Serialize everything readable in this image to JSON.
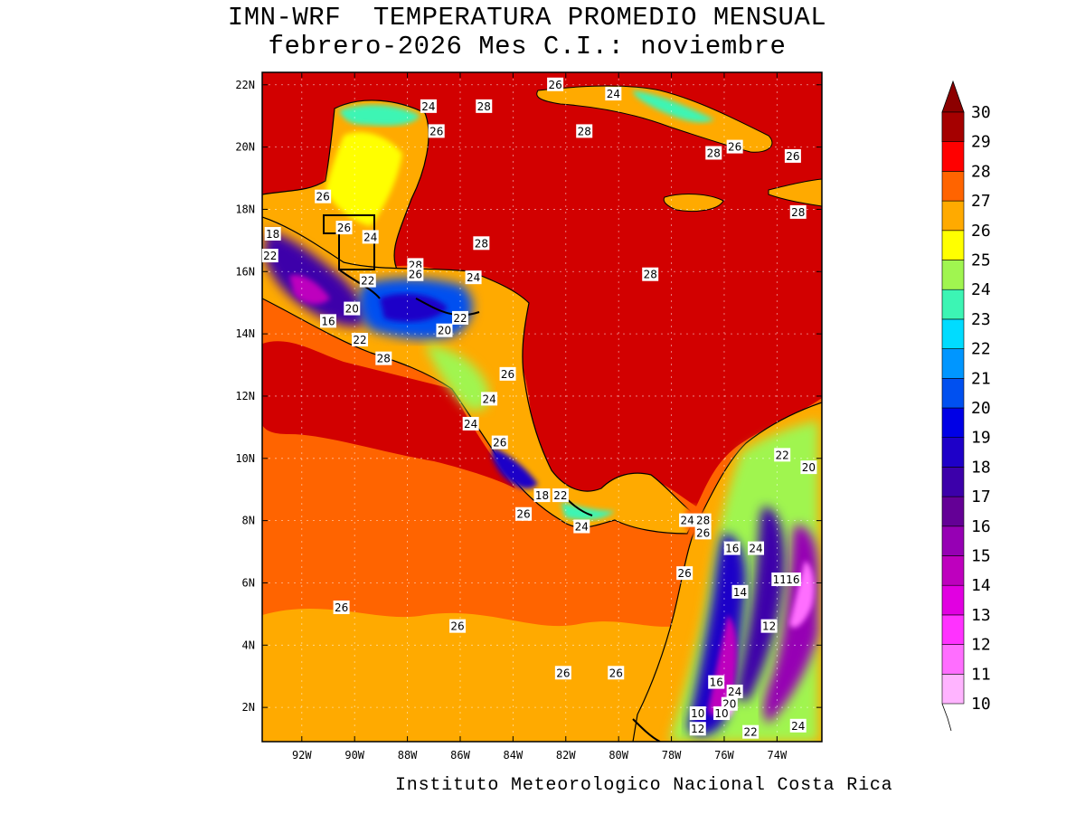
{
  "title": {
    "line1": "IMN-WRF  TEMPERATURA PROMEDIO MENSUAL",
    "line2": "febrero-2026 Mes C.I.: noviembre"
  },
  "credit": "Instituto Meteorologico Nacional Costa Rica",
  "map": {
    "lon_range": [
      -93.5,
      -72.3
    ],
    "lat_range": [
      0.9,
      22.4
    ],
    "x_ticks": [
      {
        "lon": -92,
        "label": "92W"
      },
      {
        "lon": -90,
        "label": "90W"
      },
      {
        "lon": -88,
        "label": "88W"
      },
      {
        "lon": -86,
        "label": "86W"
      },
      {
        "lon": -84,
        "label": "84W"
      },
      {
        "lon": -82,
        "label": "82W"
      },
      {
        "lon": -80,
        "label": "80W"
      },
      {
        "lon": -78,
        "label": "78W"
      },
      {
        "lon": -76,
        "label": "76W"
      },
      {
        "lon": -74,
        "label": "74W"
      }
    ],
    "y_ticks": [
      {
        "lat": 2,
        "label": "2N"
      },
      {
        "lat": 4,
        "label": "4N"
      },
      {
        "lat": 6,
        "label": "6N"
      },
      {
        "lat": 8,
        "label": "8N"
      },
      {
        "lat": 10,
        "label": "10N"
      },
      {
        "lat": 12,
        "label": "12N"
      },
      {
        "lat": 14,
        "label": "14N"
      },
      {
        "lat": 16,
        "label": "16N"
      },
      {
        "lat": 18,
        "label": "18N"
      },
      {
        "lat": 20,
        "label": "20N"
      },
      {
        "lat": 22,
        "label": "22N"
      }
    ],
    "gridlines": true,
    "contour_labels": [
      {
        "lon": -87.2,
        "lat": 21.3,
        "text": "24"
      },
      {
        "lon": -85.1,
        "lat": 21.3,
        "text": "28"
      },
      {
        "lon": -82.4,
        "lat": 22.0,
        "text": "26"
      },
      {
        "lon": -80.2,
        "lat": 21.7,
        "text": "24"
      },
      {
        "lon": -86.9,
        "lat": 20.5,
        "text": "26"
      },
      {
        "lon": -81.3,
        "lat": 20.5,
        "text": "28"
      },
      {
        "lon": -75.6,
        "lat": 20.0,
        "text": "26"
      },
      {
        "lon": -76.4,
        "lat": 19.8,
        "text": "28"
      },
      {
        "lon": -73.4,
        "lat": 19.7,
        "text": "26"
      },
      {
        "lon": -91.2,
        "lat": 18.4,
        "text": "26"
      },
      {
        "lon": -73.2,
        "lat": 17.9,
        "text": "28"
      },
      {
        "lon": -90.4,
        "lat": 17.4,
        "text": "26"
      },
      {
        "lon": -89.4,
        "lat": 17.1,
        "text": "24"
      },
      {
        "lon": -93.1,
        "lat": 17.2,
        "text": "18"
      },
      {
        "lon": -85.2,
        "lat": 16.9,
        "text": "28"
      },
      {
        "lon": -93.2,
        "lat": 16.5,
        "text": "22"
      },
      {
        "lon": -87.7,
        "lat": 16.2,
        "text": "28"
      },
      {
        "lon": -87.7,
        "lat": 15.9,
        "text": "26"
      },
      {
        "lon": -85.5,
        "lat": 15.8,
        "text": "24"
      },
      {
        "lon": -89.5,
        "lat": 15.7,
        "text": "22"
      },
      {
        "lon": -78.8,
        "lat": 15.9,
        "text": "28"
      },
      {
        "lon": -90.1,
        "lat": 14.8,
        "text": "20"
      },
      {
        "lon": -86.0,
        "lat": 14.5,
        "text": "22"
      },
      {
        "lon": -91.0,
        "lat": 14.4,
        "text": "16"
      },
      {
        "lon": -86.6,
        "lat": 14.1,
        "text": "20"
      },
      {
        "lon": -89.8,
        "lat": 13.8,
        "text": "22"
      },
      {
        "lon": -88.9,
        "lat": 13.2,
        "text": "28"
      },
      {
        "lon": -84.2,
        "lat": 12.7,
        "text": "26"
      },
      {
        "lon": -84.9,
        "lat": 11.9,
        "text": "24"
      },
      {
        "lon": -85.6,
        "lat": 11.1,
        "text": "24"
      },
      {
        "lon": -84.5,
        "lat": 10.5,
        "text": "26"
      },
      {
        "lon": -73.8,
        "lat": 10.1,
        "text": "22"
      },
      {
        "lon": -72.8,
        "lat": 9.7,
        "text": "20"
      },
      {
        "lon": -82.9,
        "lat": 8.8,
        "text": "18"
      },
      {
        "lon": -82.2,
        "lat": 8.8,
        "text": "22"
      },
      {
        "lon": -83.6,
        "lat": 8.2,
        "text": "26"
      },
      {
        "lon": -81.4,
        "lat": 7.8,
        "text": "24"
      },
      {
        "lon": -77.4,
        "lat": 8.0,
        "text": "24"
      },
      {
        "lon": -76.8,
        "lat": 8.0,
        "text": "28"
      },
      {
        "lon": -76.8,
        "lat": 7.6,
        "text": "26"
      },
      {
        "lon": -75.7,
        "lat": 7.1,
        "text": "16"
      },
      {
        "lon": -74.8,
        "lat": 7.1,
        "text": "24"
      },
      {
        "lon": -77.5,
        "lat": 6.3,
        "text": "26"
      },
      {
        "lon": -73.9,
        "lat": 6.1,
        "text": "11"
      },
      {
        "lon": -73.4,
        "lat": 6.1,
        "text": "16"
      },
      {
        "lon": -75.4,
        "lat": 5.7,
        "text": "14"
      },
      {
        "lon": -90.5,
        "lat": 5.2,
        "text": "26"
      },
      {
        "lon": -86.1,
        "lat": 4.6,
        "text": "26"
      },
      {
        "lon": -74.3,
        "lat": 4.6,
        "text": "12"
      },
      {
        "lon": -82.1,
        "lat": 3.1,
        "text": "26"
      },
      {
        "lon": -80.1,
        "lat": 3.1,
        "text": "26"
      },
      {
        "lon": -76.3,
        "lat": 2.8,
        "text": "16"
      },
      {
        "lon": -75.6,
        "lat": 2.5,
        "text": "24"
      },
      {
        "lon": -75.8,
        "lat": 2.1,
        "text": "20"
      },
      {
        "lon": -76.1,
        "lat": 1.8,
        "text": "10"
      },
      {
        "lon": -77.0,
        "lat": 1.8,
        "text": "10"
      },
      {
        "lon": -77.0,
        "lat": 1.3,
        "text": "12"
      },
      {
        "lon": -75.0,
        "lat": 1.2,
        "text": "22"
      },
      {
        "lon": -73.2,
        "lat": 1.4,
        "text": "24"
      }
    ]
  },
  "colorbar": {
    "levels": [
      "10",
      "11",
      "12",
      "13",
      "14",
      "15",
      "16",
      "17",
      "18",
      "19",
      "20",
      "21",
      "22",
      "23",
      "24",
      "25",
      "26",
      "27",
      "28",
      "29",
      "30"
    ],
    "colors": [
      "#ffb4ff",
      "#ff6eff",
      "#ff32ff",
      "#e100e1",
      "#be00be",
      "#9600b4",
      "#640096",
      "#3c00aa",
      "#1e00c8",
      "#0000e6",
      "#0050f0",
      "#0096ff",
      "#00dcff",
      "#3cf5b4",
      "#a0f550",
      "#ffff00",
      "#ffaa00",
      "#ff6400",
      "#ff0000",
      "#d20000",
      "#a50000"
    ],
    "cap_color": "#8c0000"
  },
  "colors": {
    "ocean_pacific": "#ff6400",
    "ocean_caribbean": "#d20000",
    "ocean_south": "#ffaa00",
    "coastline": "#000000"
  }
}
